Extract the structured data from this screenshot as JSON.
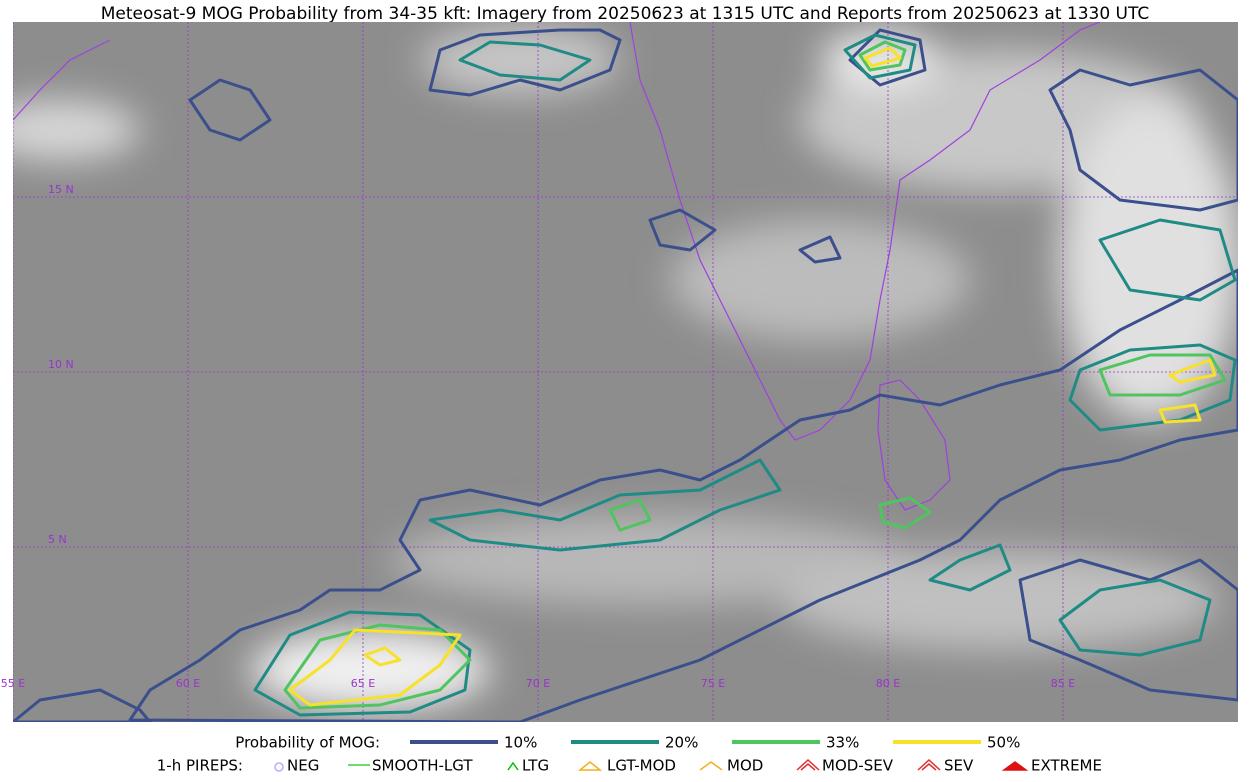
{
  "title": "Meteosat-9 MOG Probability from 34-35 kft: Imagery from 20250623 at 1315 UTC and Reports from 20250623 at 1330 UTC",
  "map": {
    "lat_labels": [
      "15 N",
      "10 N",
      "5 N"
    ],
    "lon_labels": [
      "55 E",
      "60 E",
      "65 E",
      "70 E",
      "75 E",
      "80 E",
      "85 E"
    ]
  },
  "legend": {
    "probability_title": "Probability of MOG:",
    "levels": [
      {
        "label": "10%",
        "color": "#3b4f8c"
      },
      {
        "label": "20%",
        "color": "#1f8b84"
      },
      {
        "label": "33%",
        "color": "#4fc45f"
      },
      {
        "label": "50%",
        "color": "#f7e12b"
      }
    ],
    "pireps_title": "1-h PIREPS:",
    "pireps": [
      "NEG",
      "SMOOTH-LGT",
      "LTG",
      "LGT-MOD",
      "MOD",
      "MOD-SEV",
      "SEV",
      "EXTREME"
    ]
  }
}
